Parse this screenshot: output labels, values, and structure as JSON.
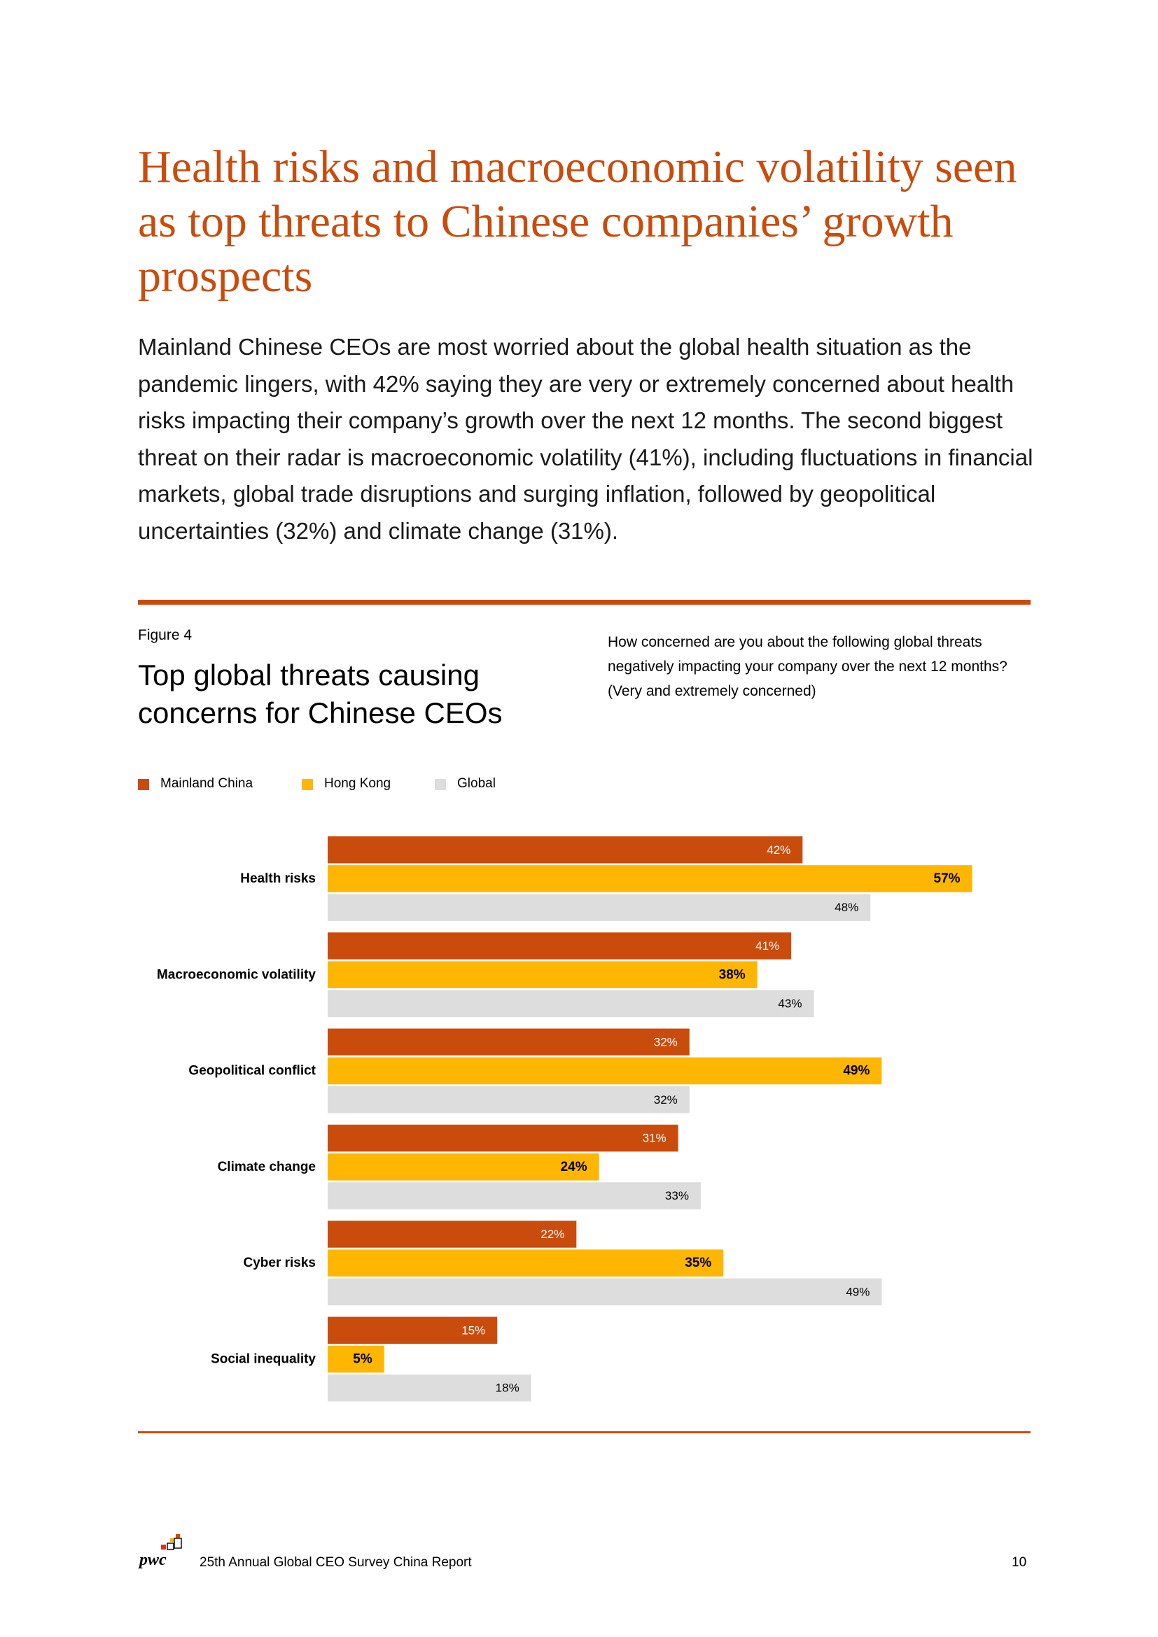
{
  "page": {
    "title": "Health risks and macroeconomic volatility seen as top threats to Chinese companies’ growth prospects",
    "intro": "Mainland Chinese CEOs are most worried about the global health situation as the pandemic lingers, with 42% saying they are very or extremely concerned about health risks impacting their company’s growth over the next 12 months. The second biggest threat on their radar is macroeconomic volatility (41%), including fluctuations in financial markets, global trade disruptions and surging inflation, followed by geopolitical uncertainties (32%) and climate change (31%)."
  },
  "figure": {
    "label": "Figure 4",
    "title": "Top global threats causing concerns for Chinese CEOs",
    "question": "How concerned are you about the following global threats negatively impacting your company over the next 12 months? (Very and extremely concerned)"
  },
  "colors": {
    "mainland": "#c94c0d",
    "hongkong": "#ffb600",
    "global": "#dddddd",
    "accent": "#c94c0d"
  },
  "chart_data": {
    "type": "bar",
    "orientation": "horizontal",
    "title": "Top global threats causing concerns for Chinese CEOs",
    "xlabel": "",
    "ylabel": "",
    "xlim": [
      0,
      100
    ],
    "unit": "%",
    "grid": false,
    "legend_position": "top-left",
    "categories": [
      "Health risks",
      "Macroeconomic volatility",
      "Geopolitical conflict",
      "Climate change",
      "Cyber risks",
      "Social inequality"
    ],
    "series": [
      {
        "name": "Mainland China",
        "color": "#c94c0d",
        "label_color": "#ffffff",
        "values": [
          42,
          41,
          32,
          31,
          22,
          15
        ]
      },
      {
        "name": "Hong Kong",
        "color": "#ffb600",
        "label_color": "#000000",
        "values": [
          57,
          38,
          49,
          24,
          35,
          5
        ]
      },
      {
        "name": "Global",
        "color": "#dddddd",
        "label_color": "#000000",
        "values": [
          48,
          43,
          32,
          33,
          49,
          18
        ]
      }
    ]
  },
  "footer": {
    "logo_text": "pwc",
    "text": "25th Annual Global CEO Survey China Report",
    "page_number": "10"
  }
}
